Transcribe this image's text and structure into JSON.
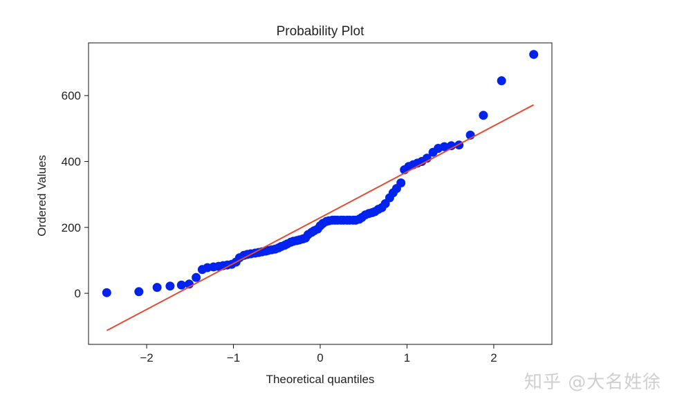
{
  "chart_data": {
    "type": "scatter",
    "title": "Probability Plot",
    "xlabel": "Theoretical quantiles",
    "ylabel": "Ordered Values",
    "xlim": [
      -2.67,
      2.67
    ],
    "ylim": [
      -155,
      760
    ],
    "xticks": [
      -2,
      -1,
      0,
      1,
      2
    ],
    "xtick_labels": [
      "−2",
      "−1",
      "0",
      "1",
      "2"
    ],
    "yticks": [
      0,
      200,
      400,
      600
    ],
    "ytick_labels": [
      "0",
      "200",
      "400",
      "600"
    ],
    "grid": false,
    "legend": "none",
    "series": [
      {
        "points": [
          [
            -2.46,
            2
          ],
          [
            -2.09,
            5
          ],
          [
            -1.88,
            18
          ],
          [
            -1.73,
            22
          ],
          [
            -1.6,
            25
          ],
          [
            -1.51,
            28
          ],
          [
            -1.43,
            48
          ],
          [
            -1.36,
            72
          ],
          [
            -1.3,
            78
          ],
          [
            -1.23,
            80
          ],
          [
            -1.17,
            82
          ],
          [
            -1.12,
            84
          ],
          [
            -1.07,
            86
          ],
          [
            -1.02,
            88
          ],
          [
            -0.97,
            95
          ],
          [
            -0.93,
            108
          ],
          [
            -0.88,
            115
          ],
          [
            -0.84,
            118
          ],
          [
            -0.8,
            120
          ],
          [
            -0.75,
            122
          ],
          [
            -0.71,
            124
          ],
          [
            -0.67,
            126
          ],
          [
            -0.63,
            128
          ],
          [
            -0.6,
            130
          ],
          [
            -0.56,
            132
          ],
          [
            -0.52,
            134
          ],
          [
            -0.48,
            138
          ],
          [
            -0.45,
            142
          ],
          [
            -0.41,
            146
          ],
          [
            -0.38,
            150
          ],
          [
            -0.34,
            155
          ],
          [
            -0.31,
            158
          ],
          [
            -0.27,
            160
          ],
          [
            -0.24,
            162
          ],
          [
            -0.2,
            165
          ],
          [
            -0.17,
            168
          ],
          [
            -0.14,
            178
          ],
          [
            -0.1,
            185
          ],
          [
            -0.07,
            190
          ],
          [
            -0.03,
            195
          ],
          [
            0.0,
            205
          ],
          [
            0.03,
            212
          ],
          [
            0.07,
            218
          ],
          [
            0.1,
            220
          ],
          [
            0.14,
            222
          ],
          [
            0.17,
            222
          ],
          [
            0.2,
            222
          ],
          [
            0.24,
            222
          ],
          [
            0.27,
            222
          ],
          [
            0.31,
            222
          ],
          [
            0.34,
            222
          ],
          [
            0.38,
            222
          ],
          [
            0.41,
            222
          ],
          [
            0.45,
            225
          ],
          [
            0.48,
            230
          ],
          [
            0.52,
            238
          ],
          [
            0.56,
            242
          ],
          [
            0.6,
            245
          ],
          [
            0.63,
            248
          ],
          [
            0.67,
            255
          ],
          [
            0.71,
            260
          ],
          [
            0.75,
            272
          ],
          [
            0.8,
            290
          ],
          [
            0.84,
            305
          ],
          [
            0.88,
            318
          ],
          [
            0.93,
            335
          ],
          [
            0.97,
            375
          ],
          [
            1.02,
            385
          ],
          [
            1.07,
            390
          ],
          [
            1.12,
            395
          ],
          [
            1.17,
            400
          ],
          [
            1.23,
            410
          ],
          [
            1.3,
            428
          ],
          [
            1.36,
            440
          ],
          [
            1.43,
            445
          ],
          [
            1.51,
            448
          ],
          [
            1.6,
            450
          ],
          [
            1.73,
            480
          ],
          [
            1.88,
            540
          ],
          [
            2.09,
            645
          ],
          [
            2.46,
            725
          ]
        ],
        "color": "#0022ee"
      }
    ],
    "fit_line": {
      "x": [
        -2.46,
        2.46
      ],
      "y": [
        -113,
        572
      ],
      "color": "#e24a33"
    }
  },
  "watermark": "知乎 @大名姓徐"
}
